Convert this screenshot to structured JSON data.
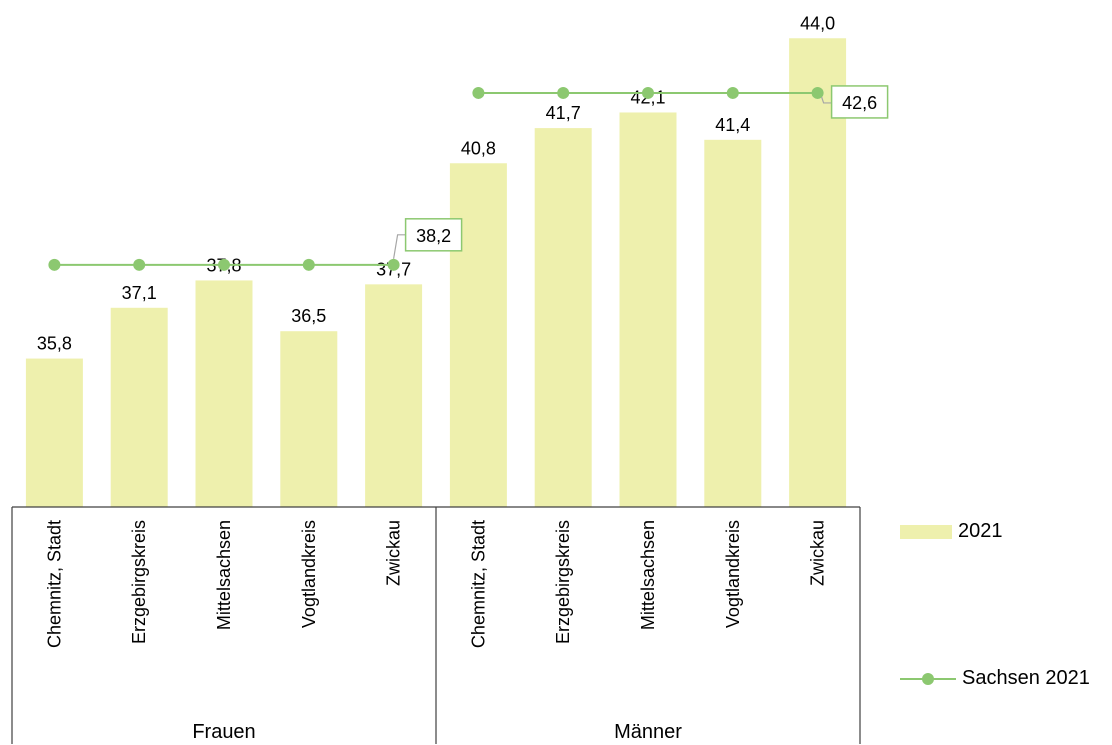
{
  "chart_data": {
    "type": "bar",
    "categories": [
      {
        "group": "Frauen",
        "label": "Chemnitz, Stadt"
      },
      {
        "group": "Frauen",
        "label": "Erzgebirgskreis"
      },
      {
        "group": "Frauen",
        "label": "Mittelsachsen"
      },
      {
        "group": "Frauen",
        "label": "Vogtlandkreis"
      },
      {
        "group": "Frauen",
        "label": "Zwickau"
      },
      {
        "group": "Männer",
        "label": "Chemnitz, Stadt"
      },
      {
        "group": "Männer",
        "label": "Erzgebirgskreis"
      },
      {
        "group": "Männer",
        "label": "Mittelsachsen"
      },
      {
        "group": "Männer",
        "label": "Vogtlandkreis"
      },
      {
        "group": "Männer",
        "label": "Zwickau"
      }
    ],
    "groups": [
      "Frauen",
      "Männer"
    ],
    "series": [
      {
        "name": "2021",
        "kind": "bar",
        "color": "#eef0ad",
        "values": [
          35.8,
          37.1,
          37.8,
          36.5,
          37.7,
          40.8,
          41.7,
          42.1,
          41.4,
          44.0
        ],
        "labels": [
          "35,8",
          "37,1",
          "37,8",
          "36,5",
          "37,7",
          "40,8",
          "41,7",
          "42,1",
          "41,4",
          "44,0"
        ]
      },
      {
        "name": "Sachsen 2021",
        "kind": "line",
        "color": "#8cc870",
        "values": [
          38.2,
          38.2,
          38.2,
          38.2,
          38.2,
          42.6,
          42.6,
          42.6,
          42.6,
          42.6
        ],
        "callouts": [
          {
            "index": 4,
            "text": "38,2"
          },
          {
            "index": 9,
            "text": "42,6"
          }
        ]
      }
    ],
    "ylim": [
      32,
      44.8
    ],
    "legend_position": "right",
    "grid": false
  }
}
